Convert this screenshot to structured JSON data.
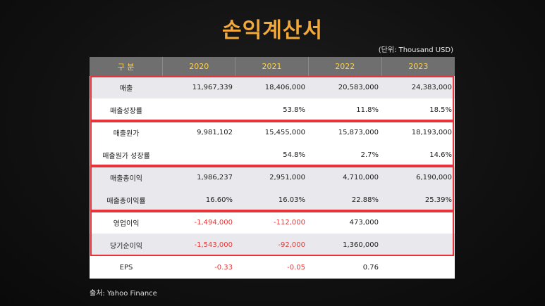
{
  "title": "손익계산서",
  "unit": "(단위: Thousand USD)",
  "header": [
    "구 분",
    "2020",
    "2021",
    "2022",
    "2023"
  ],
  "rows": [
    {
      "label": "매출",
      "values": [
        "11,967,339",
        "18,406,000",
        "20,583,000",
        "24,383,000"
      ]
    },
    {
      "label": "매출성장률",
      "values": [
        "",
        "53.8%",
        "11.8%",
        "18.5%"
      ]
    },
    {
      "label": "매출원가",
      "values": [
        "9,981,102",
        "15,455,000",
        "15,873,000",
        "18,193,000"
      ]
    },
    {
      "label": "매출원가 성장률",
      "values": [
        "",
        "54.8%",
        "2.7%",
        "14.6%"
      ]
    },
    {
      "label": "매출총이익",
      "values": [
        "1,986,237",
        "2,951,000",
        "4,710,000",
        "6,190,000"
      ]
    },
    {
      "label": "매출총이익률",
      "values": [
        "16.60%",
        "16.03%",
        "22.88%",
        "25.39%"
      ]
    },
    {
      "label": "영업이익",
      "values": [
        "-1,494,000",
        "-112,000",
        "473,000",
        ""
      ]
    },
    {
      "label": "당기순이익",
      "values": [
        "-1,543,000",
        "-92,000",
        "1,360,000",
        ""
      ]
    },
    {
      "label": "EPS",
      "values": [
        "-0.33",
        "-0.05",
        "0.76",
        ""
      ]
    }
  ],
  "source": "출처: Yahoo Finance",
  "colors": {
    "title": "#f2a93b",
    "header_text": "#ffd24a",
    "negative": "#e23a3a",
    "group_border": "#e8333a"
  }
}
